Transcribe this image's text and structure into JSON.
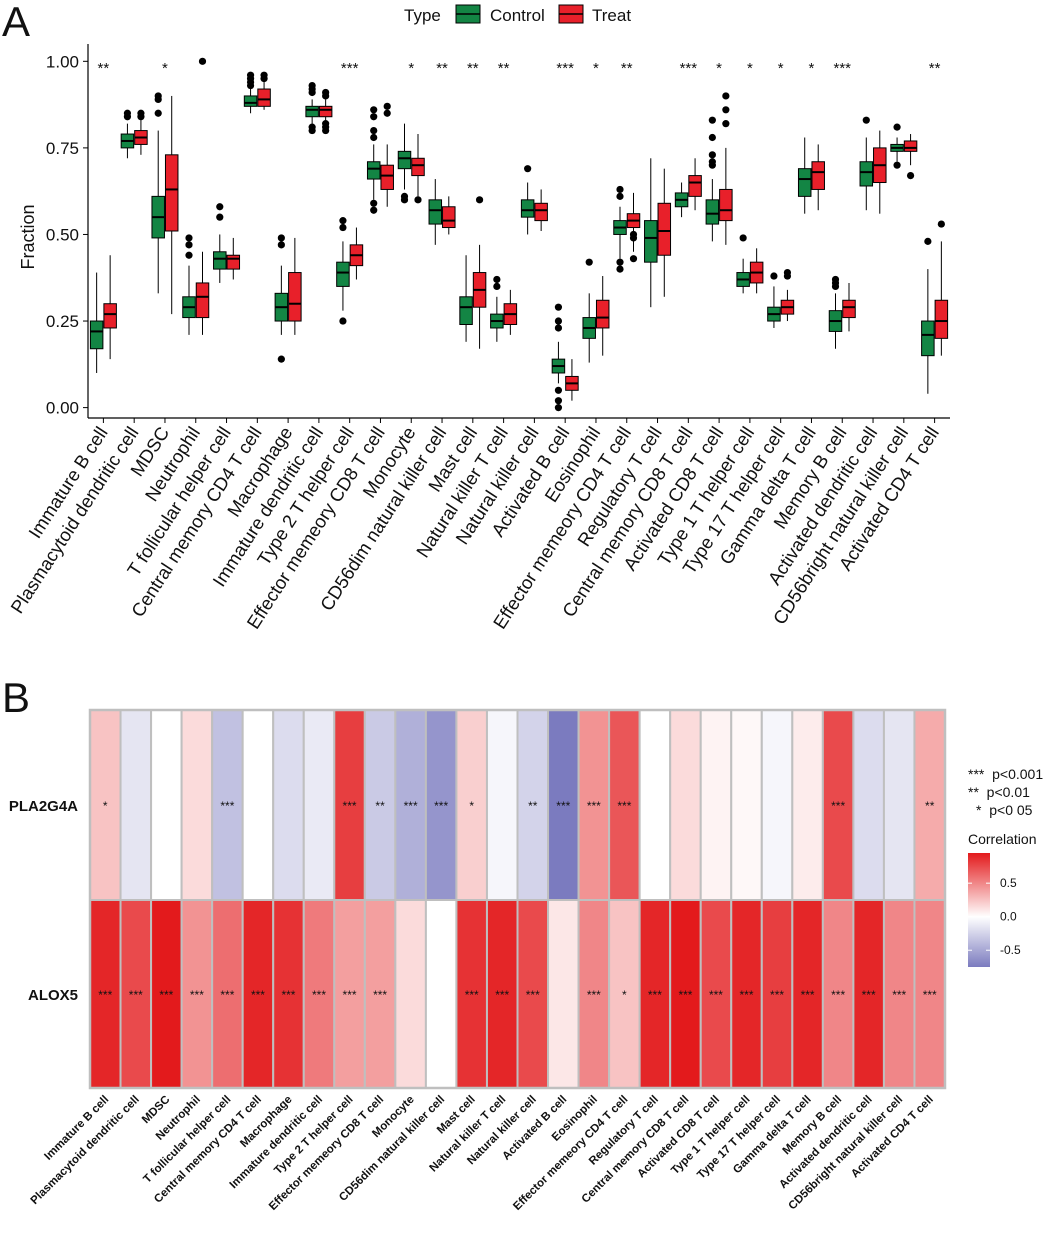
{
  "panel_a_label": "A",
  "panel_b_label": "B",
  "colors": {
    "control": "#138544",
    "treat": "#e8202a",
    "heat_high": "#e31a1c",
    "heat_mid": "#ffffff",
    "heat_low": "#7b7bbf",
    "cell_border": "#bfbfbf"
  },
  "chart_data": [
    {
      "type": "box",
      "title": "",
      "ylabel": "Fraction",
      "xlabel": "",
      "ylim": [
        -0.03,
        1.05
      ],
      "yticks": [
        "0.00",
        "0.25",
        "0.50",
        "0.75",
        "1.00"
      ],
      "yticks_values": [
        0,
        0.25,
        0.5,
        0.75,
        1.0
      ],
      "legend": {
        "title": "Type",
        "position": "top",
        "entries": [
          "Control",
          "Treat"
        ]
      },
      "categories": [
        "Immature  B cell",
        "Plasmacytoid dendritic cell",
        "MDSC",
        "Neutrophil",
        "T follicular helper cell",
        "Central memory CD4 T cell",
        "Macrophage",
        "Immature dendritic cell",
        "Type 2 T helper cell",
        "Effector memeory CD8 T cell",
        "Monocyte",
        "CD56dim natural killer cell",
        "Mast cell",
        "Natural killer T cell",
        "Natural killer cell",
        "Activated B cell",
        "Eosinophil",
        "Effector memeory CD4 T cell",
        "Regulatory T cell",
        "Central memory CD8 T cell",
        "Activated CD8 T cell",
        "Type 1 T helper cell",
        "Type 17 T helper cell",
        "Gamma delta T cell",
        "Memory B cell",
        "Activated dendritic cell",
        "CD56bright natural killer cell",
        "Activated CD4 T cell"
      ],
      "significance": [
        "**",
        "",
        "*",
        "",
        "",
        "",
        "",
        "",
        "***",
        "",
        "*",
        "**",
        "**",
        "**",
        "",
        "***",
        "*",
        "**",
        "",
        "***",
        "*",
        "*",
        "*",
        "*",
        "***",
        "",
        "",
        "**"
      ],
      "series": [
        {
          "name": "Control",
          "boxes": [
            {
              "whisker_low": 0.1,
              "q1": 0.17,
              "median": 0.22,
              "q3": 0.25,
              "whisker_high": 0.39,
              "outliers": []
            },
            {
              "whisker_low": 0.72,
              "q1": 0.75,
              "median": 0.77,
              "q3": 0.79,
              "whisker_high": 0.82,
              "outliers": [
                0.84,
                0.85
              ]
            },
            {
              "whisker_low": 0.33,
              "q1": 0.49,
              "median": 0.55,
              "q3": 0.61,
              "whisker_high": 0.8,
              "outliers": [
                0.85,
                0.89,
                0.9
              ]
            },
            {
              "whisker_low": 0.21,
              "q1": 0.26,
              "median": 0.29,
              "q3": 0.32,
              "whisker_high": 0.41,
              "outliers": [
                0.44,
                0.47,
                0.49
              ]
            },
            {
              "whisker_low": 0.36,
              "q1": 0.4,
              "median": 0.43,
              "q3": 0.45,
              "whisker_high": 0.5,
              "outliers": [
                0.55,
                0.58
              ]
            },
            {
              "whisker_low": 0.85,
              "q1": 0.87,
              "median": 0.88,
              "q3": 0.9,
              "whisker_high": 0.92,
              "outliers": [
                0.93,
                0.94,
                0.95,
                0.96
              ]
            },
            {
              "whisker_low": 0.21,
              "q1": 0.25,
              "median": 0.29,
              "q3": 0.33,
              "whisker_high": 0.41,
              "outliers": [
                0.14,
                0.47,
                0.49
              ]
            },
            {
              "whisker_low": 0.82,
              "q1": 0.84,
              "median": 0.86,
              "q3": 0.87,
              "whisker_high": 0.89,
              "outliers": [
                0.8,
                0.81,
                0.91,
                0.92,
                0.93
              ]
            },
            {
              "whisker_low": 0.28,
              "q1": 0.35,
              "median": 0.39,
              "q3": 0.42,
              "whisker_high": 0.48,
              "outliers": [
                0.25,
                0.52,
                0.54
              ]
            },
            {
              "whisker_low": 0.6,
              "q1": 0.66,
              "median": 0.69,
              "q3": 0.71,
              "whisker_high": 0.76,
              "outliers": [
                0.57,
                0.59,
                0.78,
                0.8,
                0.84,
                0.86
              ]
            },
            {
              "whisker_low": 0.63,
              "q1": 0.69,
              "median": 0.72,
              "q3": 0.74,
              "whisker_high": 0.82,
              "outliers": [
                0.6,
                0.61
              ]
            },
            {
              "whisker_low": 0.47,
              "q1": 0.53,
              "median": 0.57,
              "q3": 0.6,
              "whisker_high": 0.66,
              "outliers": []
            },
            {
              "whisker_low": 0.19,
              "q1": 0.24,
              "median": 0.29,
              "q3": 0.32,
              "whisker_high": 0.44,
              "outliers": []
            },
            {
              "whisker_low": 0.19,
              "q1": 0.23,
              "median": 0.25,
              "q3": 0.27,
              "whisker_high": 0.32,
              "outliers": [
                0.35,
                0.37
              ]
            },
            {
              "whisker_low": 0.5,
              "q1": 0.55,
              "median": 0.57,
              "q3": 0.6,
              "whisker_high": 0.65,
              "outliers": [
                0.69
              ]
            },
            {
              "whisker_low": 0.07,
              "q1": 0.1,
              "median": 0.12,
              "q3": 0.14,
              "whisker_high": 0.19,
              "outliers": [
                0.0,
                0.02,
                0.05,
                0.23,
                0.25,
                0.29
              ]
            },
            {
              "whisker_low": 0.13,
              "q1": 0.2,
              "median": 0.23,
              "q3": 0.26,
              "whisker_high": 0.33,
              "outliers": [
                0.42
              ]
            },
            {
              "whisker_low": 0.43,
              "q1": 0.5,
              "median": 0.52,
              "q3": 0.54,
              "whisker_high": 0.58,
              "outliers": [
                0.4,
                0.42,
                0.61,
                0.63
              ]
            },
            {
              "whisker_low": 0.29,
              "q1": 0.42,
              "median": 0.49,
              "q3": 0.54,
              "whisker_high": 0.72,
              "outliers": []
            },
            {
              "whisker_low": 0.55,
              "q1": 0.58,
              "median": 0.6,
              "q3": 0.62,
              "whisker_high": 0.65,
              "outliers": []
            },
            {
              "whisker_low": 0.48,
              "q1": 0.53,
              "median": 0.56,
              "q3": 0.6,
              "whisker_high": 0.66,
              "outliers": [
                0.7,
                0.71,
                0.73,
                0.78,
                0.83
              ]
            },
            {
              "whisker_low": 0.33,
              "q1": 0.35,
              "median": 0.37,
              "q3": 0.39,
              "whisker_high": 0.43,
              "outliers": [
                0.49
              ]
            },
            {
              "whisker_low": 0.23,
              "q1": 0.25,
              "median": 0.27,
              "q3": 0.29,
              "whisker_high": 0.35,
              "outliers": [
                0.38
              ]
            },
            {
              "whisker_low": 0.56,
              "q1": 0.61,
              "median": 0.66,
              "q3": 0.69,
              "whisker_high": 0.78,
              "outliers": []
            },
            {
              "whisker_low": 0.17,
              "q1": 0.22,
              "median": 0.25,
              "q3": 0.28,
              "whisker_high": 0.33,
              "outliers": [
                0.35,
                0.36,
                0.37
              ]
            },
            {
              "whisker_low": 0.57,
              "q1": 0.64,
              "median": 0.68,
              "q3": 0.71,
              "whisker_high": 0.78,
              "outliers": [
                0.83
              ]
            },
            {
              "whisker_low": 0.71,
              "q1": 0.74,
              "median": 0.75,
              "q3": 0.76,
              "whisker_high": 0.78,
              "outliers": [
                0.7,
                0.81
              ]
            },
            {
              "whisker_low": 0.04,
              "q1": 0.15,
              "median": 0.21,
              "q3": 0.25,
              "whisker_high": 0.4,
              "outliers": [
                0.48
              ]
            }
          ]
        },
        {
          "name": "Treat",
          "boxes": [
            {
              "whisker_low": 0.14,
              "q1": 0.23,
              "median": 0.27,
              "q3": 0.3,
              "whisker_high": 0.44,
              "outliers": []
            },
            {
              "whisker_low": 0.73,
              "q1": 0.76,
              "median": 0.78,
              "q3": 0.8,
              "whisker_high": 0.83,
              "outliers": [
                0.84,
                0.85
              ]
            },
            {
              "whisker_low": 0.27,
              "q1": 0.51,
              "median": 0.63,
              "q3": 0.73,
              "whisker_high": 0.9,
              "outliers": []
            },
            {
              "whisker_low": 0.21,
              "q1": 0.26,
              "median": 0.32,
              "q3": 0.36,
              "whisker_high": 0.45,
              "outliers": [
                1.0
              ]
            },
            {
              "whisker_low": 0.37,
              "q1": 0.4,
              "median": 0.43,
              "q3": 0.44,
              "whisker_high": 0.49,
              "outliers": []
            },
            {
              "whisker_low": 0.86,
              "q1": 0.87,
              "median": 0.89,
              "q3": 0.92,
              "whisker_high": 0.94,
              "outliers": [
                0.95,
                0.96
              ]
            },
            {
              "whisker_low": 0.21,
              "q1": 0.25,
              "median": 0.3,
              "q3": 0.39,
              "whisker_high": 0.49,
              "outliers": []
            },
            {
              "whisker_low": 0.83,
              "q1": 0.84,
              "median": 0.86,
              "q3": 0.87,
              "whisker_high": 0.89,
              "outliers": [
                0.8,
                0.81,
                0.82,
                0.9,
                0.91
              ]
            },
            {
              "whisker_low": 0.37,
              "q1": 0.41,
              "median": 0.44,
              "q3": 0.47,
              "whisker_high": 0.52,
              "outliers": []
            },
            {
              "whisker_low": 0.58,
              "q1": 0.63,
              "median": 0.67,
              "q3": 0.7,
              "whisker_high": 0.76,
              "outliers": [
                0.85,
                0.87
              ]
            },
            {
              "whisker_low": 0.61,
              "q1": 0.67,
              "median": 0.7,
              "q3": 0.72,
              "whisker_high": 0.79,
              "outliers": [
                0.6
              ]
            },
            {
              "whisker_low": 0.5,
              "q1": 0.52,
              "median": 0.54,
              "q3": 0.58,
              "whisker_high": 0.61,
              "outliers": []
            },
            {
              "whisker_low": 0.17,
              "q1": 0.29,
              "median": 0.34,
              "q3": 0.39,
              "whisker_high": 0.47,
              "outliers": [
                0.6
              ]
            },
            {
              "whisker_low": 0.21,
              "q1": 0.24,
              "median": 0.27,
              "q3": 0.3,
              "whisker_high": 0.34,
              "outliers": []
            },
            {
              "whisker_low": 0.51,
              "q1": 0.54,
              "median": 0.57,
              "q3": 0.59,
              "whisker_high": 0.63,
              "outliers": []
            },
            {
              "whisker_low": 0.02,
              "q1": 0.05,
              "median": 0.07,
              "q3": 0.09,
              "whisker_high": 0.14,
              "outliers": []
            },
            {
              "whisker_low": 0.15,
              "q1": 0.23,
              "median": 0.26,
              "q3": 0.31,
              "whisker_high": 0.38,
              "outliers": []
            },
            {
              "whisker_low": 0.45,
              "q1": 0.52,
              "median": 0.54,
              "q3": 0.56,
              "whisker_high": 0.62,
              "outliers": [
                0.43,
                0.49,
                0.5
              ]
            },
            {
              "whisker_low": 0.32,
              "q1": 0.44,
              "median": 0.51,
              "q3": 0.59,
              "whisker_high": 0.69,
              "outliers": []
            },
            {
              "whisker_low": 0.57,
              "q1": 0.61,
              "median": 0.65,
              "q3": 0.67,
              "whisker_high": 0.72,
              "outliers": []
            },
            {
              "whisker_low": 0.47,
              "q1": 0.54,
              "median": 0.57,
              "q3": 0.63,
              "whisker_high": 0.75,
              "outliers": [
                0.82,
                0.86,
                0.9
              ]
            },
            {
              "whisker_low": 0.33,
              "q1": 0.36,
              "median": 0.39,
              "q3": 0.42,
              "whisker_high": 0.46,
              "outliers": []
            },
            {
              "whisker_low": 0.25,
              "q1": 0.27,
              "median": 0.29,
              "q3": 0.31,
              "whisker_high": 0.34,
              "outliers": [
                0.38,
                0.39
              ]
            },
            {
              "whisker_low": 0.57,
              "q1": 0.63,
              "median": 0.68,
              "q3": 0.71,
              "whisker_high": 0.76,
              "outliers": []
            },
            {
              "whisker_low": 0.22,
              "q1": 0.26,
              "median": 0.29,
              "q3": 0.31,
              "whisker_high": 0.36,
              "outliers": []
            },
            {
              "whisker_low": 0.56,
              "q1": 0.65,
              "median": 0.7,
              "q3": 0.75,
              "whisker_high": 0.8,
              "outliers": []
            },
            {
              "whisker_low": 0.7,
              "q1": 0.74,
              "median": 0.75,
              "q3": 0.77,
              "whisker_high": 0.79,
              "outliers": [
                0.67
              ]
            },
            {
              "whisker_low": 0.15,
              "q1": 0.2,
              "median": 0.25,
              "q3": 0.31,
              "whisker_high": 0.48,
              "outliers": [
                0.53
              ]
            }
          ]
        }
      ]
    },
    {
      "type": "heatmap",
      "title": "",
      "rows": [
        "PLA2G4A",
        "ALOX5"
      ],
      "columns": [
        "Immature B cell",
        "Plasmacytoid dendritic cell",
        "MDSC",
        "Neutrophil",
        "T follicular helper cell",
        "Central memory CD4 T cell",
        "Macrophage",
        "Immature dendritic cell",
        "Type 2 T helper cell",
        "Effector memeory CD8 T cell",
        "Monocyte",
        "CD56dim natural killer cell",
        "Mast cell",
        "Natural killer T cell",
        "Natural killer cell",
        "Activated B cell",
        "Eosinophil",
        "Effector memeory CD4 T cell",
        "Regulatory T cell",
        "Central memory CD8 T cell",
        "Activated CD8 T cell",
        "Type 1 T helper cell",
        "Type 17 T helper cell",
        "Gamma delta T cell",
        "Memory B cell",
        "Activated dendritic cell",
        "CD56bright natural killer cell",
        "Activated CD4 T cell"
      ],
      "values": [
        [
          0.25,
          -0.15,
          0.0,
          0.15,
          -0.35,
          0.0,
          -0.2,
          -0.12,
          0.8,
          -0.3,
          -0.45,
          -0.6,
          0.2,
          -0.05,
          -0.25,
          -0.75,
          0.45,
          0.7,
          0.0,
          0.15,
          0.05,
          0.03,
          -0.05,
          0.08,
          0.75,
          -0.2,
          -0.15,
          0.35
        ],
        [
          0.9,
          0.75,
          0.95,
          0.45,
          0.6,
          0.9,
          0.85,
          0.55,
          0.4,
          0.4,
          0.15,
          0.0,
          0.85,
          0.9,
          0.75,
          0.1,
          0.5,
          0.25,
          0.9,
          0.95,
          0.75,
          0.9,
          0.8,
          0.9,
          0.5,
          0.9,
          0.5,
          0.5
        ]
      ],
      "significance": [
        [
          "*",
          "",
          "",
          "",
          "***",
          "",
          "",
          "",
          "***",
          "**",
          "***",
          "***",
          "*",
          "",
          "**",
          "***",
          "***",
          "***",
          "",
          "",
          "",
          "",
          "",
          "",
          "***",
          "",
          "",
          "**"
        ],
        [
          "***",
          "***",
          "***",
          "***",
          "***",
          "***",
          "***",
          "***",
          "***",
          "***",
          "",
          "",
          "***",
          "***",
          "***",
          "",
          "***",
          "*",
          "***",
          "***",
          "***",
          "***",
          "***",
          "***",
          "***",
          "***",
          "***",
          "***"
        ]
      ],
      "significance_legend": [
        "***  p<0.001",
        "**  p<0.01",
        "*  p<0 05"
      ],
      "colorbar": {
        "title": "Correlation",
        "ticks": [
          "0.5",
          "0.0",
          "-0.5"
        ],
        "tick_values": [
          0.5,
          0.0,
          -0.5
        ],
        "range": [
          -0.75,
          0.95
        ]
      }
    }
  ]
}
